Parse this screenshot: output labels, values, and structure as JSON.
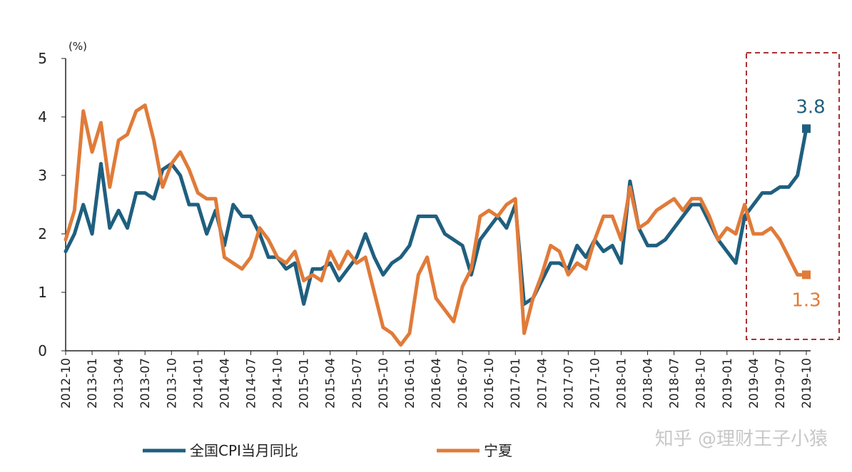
{
  "chart_data": {
    "type": "line",
    "ylabel": "(%)",
    "categories": [
      "2012-10",
      null,
      null,
      "2013-01",
      null,
      null,
      "2013-04",
      null,
      null,
      "2013-07",
      null,
      null,
      "2013-10",
      null,
      null,
      "2014-01",
      null,
      null,
      "2014-04",
      null,
      null,
      "2014-07",
      null,
      null,
      "2014-10",
      null,
      null,
      "2015-01",
      null,
      null,
      "2015-04",
      null,
      null,
      "2015-07",
      null,
      null,
      "2015-10",
      null,
      null,
      "2016-01",
      null,
      null,
      "2016-04",
      null,
      null,
      "2016-07",
      null,
      null,
      "2016-10",
      null,
      null,
      "2017-01",
      null,
      null,
      "2017-04",
      null,
      null,
      "2017-07",
      null,
      null,
      "2017-10",
      null,
      null,
      "2018-01",
      null,
      null,
      "2018-04",
      null,
      null,
      "2018-07",
      null,
      null,
      "2018-10",
      null,
      null,
      "2019-01",
      null,
      null,
      "2019-04",
      null,
      null,
      "2019-07",
      null,
      null,
      "2019-10"
    ],
    "series": [
      {
        "name": "全国CPI当月同比",
        "color": "#1f5f7f",
        "values": [
          1.7,
          2.0,
          2.5,
          2.0,
          3.2,
          2.1,
          2.4,
          2.1,
          2.7,
          2.7,
          2.6,
          3.1,
          3.2,
          3.0,
          2.5,
          2.5,
          2.0,
          2.4,
          1.8,
          2.5,
          2.3,
          2.3,
          2.0,
          1.6,
          1.6,
          1.4,
          1.5,
          0.8,
          1.4,
          1.4,
          1.5,
          1.2,
          1.4,
          1.6,
          2.0,
          1.6,
          1.3,
          1.5,
          1.6,
          1.8,
          2.3,
          2.3,
          2.3,
          2.0,
          1.9,
          1.8,
          1.3,
          1.9,
          2.1,
          2.3,
          2.1,
          2.5,
          0.8,
          0.9,
          1.2,
          1.5,
          1.5,
          1.4,
          1.8,
          1.6,
          1.9,
          1.7,
          1.8,
          1.5,
          2.9,
          2.1,
          1.8,
          1.8,
          1.9,
          2.1,
          2.3,
          2.5,
          2.5,
          2.2,
          1.9,
          1.7,
          1.5,
          2.3,
          2.5,
          2.7,
          2.7,
          2.8,
          2.8,
          3.0,
          3.8
        ]
      },
      {
        "name": "宁夏",
        "color": "#e07b39",
        "values": [
          1.9,
          2.4,
          4.1,
          3.4,
          3.9,
          2.8,
          3.6,
          3.7,
          4.1,
          4.2,
          3.6,
          2.8,
          3.2,
          3.4,
          3.1,
          2.7,
          2.6,
          2.6,
          1.6,
          1.5,
          1.4,
          1.6,
          2.1,
          1.9,
          1.6,
          1.5,
          1.7,
          1.2,
          1.3,
          1.2,
          1.7,
          1.4,
          1.7,
          1.5,
          1.6,
          1.0,
          0.4,
          0.3,
          0.1,
          0.3,
          1.3,
          1.6,
          0.9,
          0.7,
          0.5,
          1.1,
          1.4,
          2.3,
          2.4,
          2.3,
          2.5,
          2.6,
          0.3,
          0.9,
          1.3,
          1.8,
          1.7,
          1.3,
          1.5,
          1.4,
          1.9,
          2.3,
          2.3,
          1.9,
          2.8,
          2.1,
          2.2,
          2.4,
          2.5,
          2.6,
          2.4,
          2.6,
          2.6,
          2.3,
          1.9,
          2.1,
          2.0,
          2.5,
          2.0,
          2.0,
          2.1,
          1.9,
          1.6,
          1.3,
          1.3
        ]
      }
    ],
    "ylim": [
      0,
      5
    ],
    "yticks": [
      0,
      1,
      2,
      3,
      4,
      5
    ],
    "annotate_last": true,
    "legend": "bottom",
    "watermark": "知乎 @理财王子小猿"
  }
}
